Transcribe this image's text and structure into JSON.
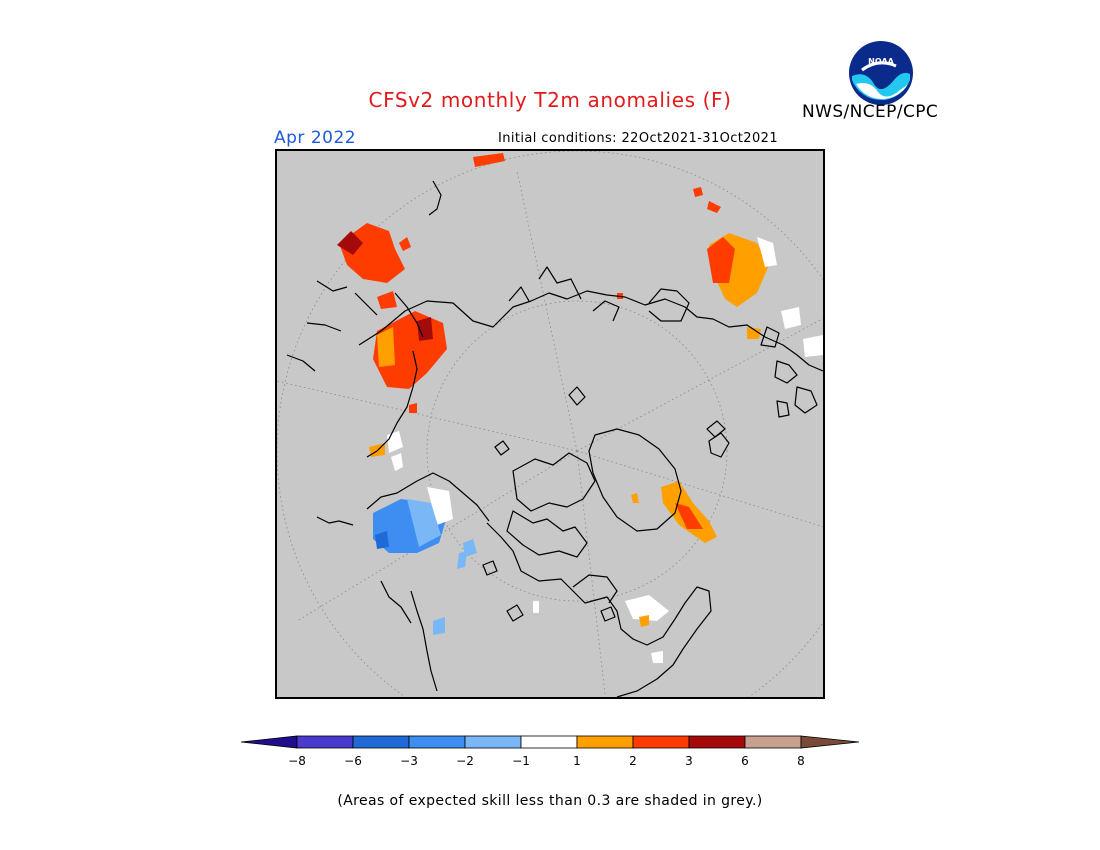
{
  "title": "CFSv2 monthly T2m anomalies (F)",
  "agency": "NWS/NCEP/CPC",
  "logo_text": "NOAA",
  "valid_month": "Apr 2022",
  "initial_conditions": "Initial conditions: 22Oct2021-31Oct2021",
  "footnote": "(Areas of expected skill less than 0.3 are shaded in grey.)",
  "map": {
    "projection": "north-polar-stereographic",
    "background_color": "#c8c8c8",
    "coastline_color": "#000000",
    "graticule": "dotted"
  },
  "colorbar": {
    "ticks": [
      "−8",
      "−6",
      "−3",
      "−2",
      "−1",
      "1",
      "2",
      "3",
      "6",
      "8"
    ],
    "colors": [
      "#1f0f8c",
      "#4a3acd",
      "#1f6ad6",
      "#3d8ef0",
      "#7ab7f7",
      "#ffffff",
      "#ffa000",
      "#ff3c00",
      "#a50a0a",
      "#c8a090",
      "#7a4a38"
    ]
  }
}
